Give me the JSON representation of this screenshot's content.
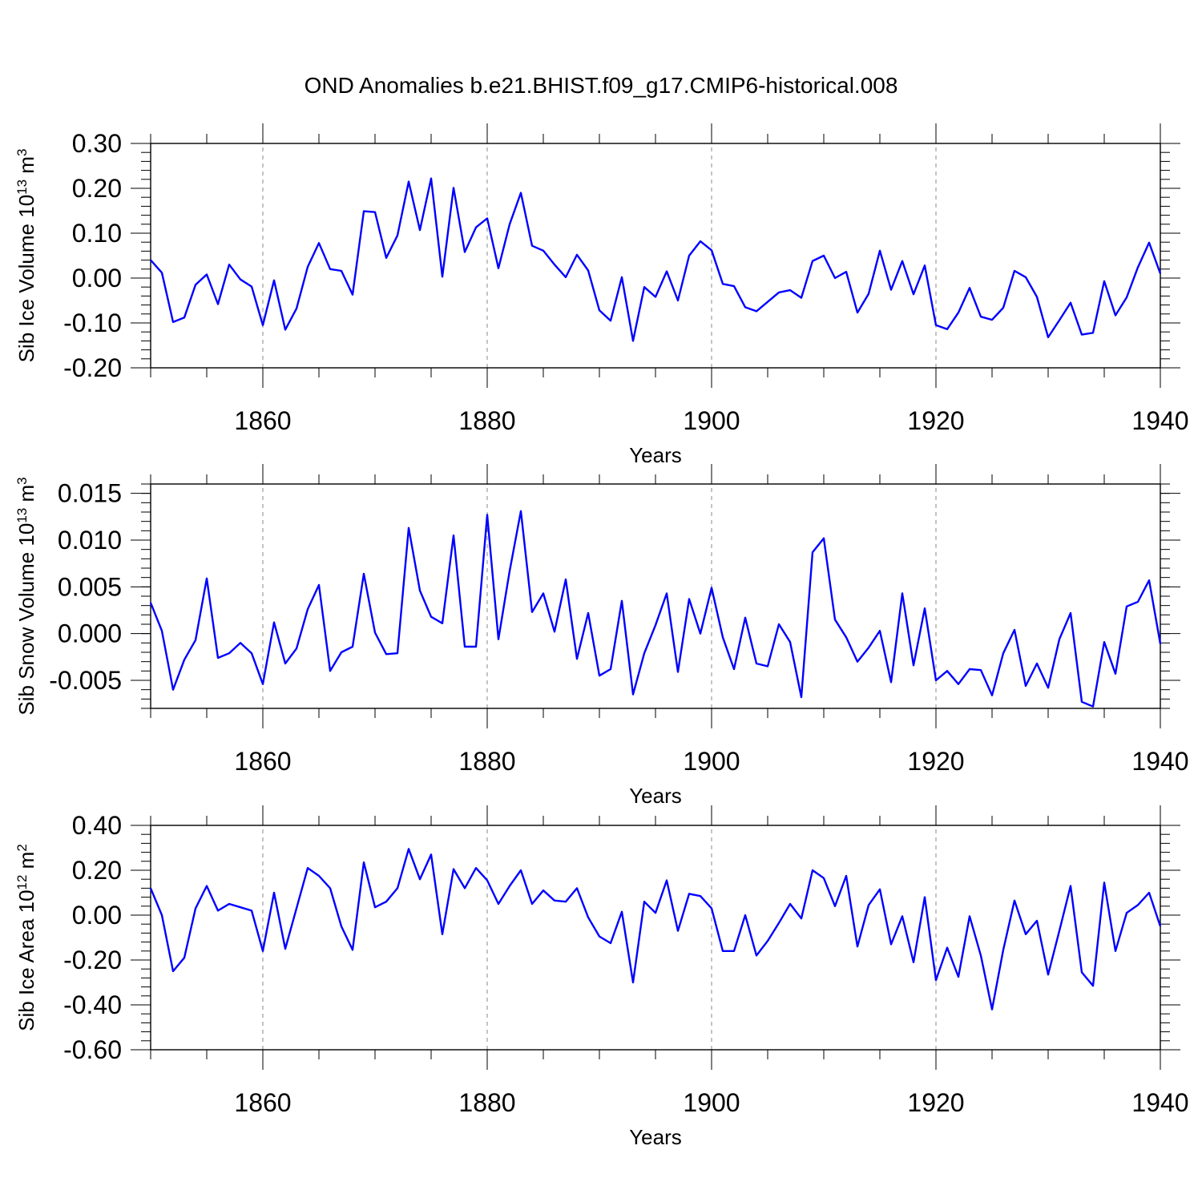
{
  "title": "OND Anomalies b.e21.BHIST.f09_g17.CMIP6-historical.008",
  "line_color": "#0000ff",
  "chart_data": [
    {
      "type": "line",
      "ylabel": "Sib Ice Volume 10",
      "ylabel_exp": "13",
      "ylabel_unit": " m",
      "ylabel_unit_exp": "3",
      "xlabel": "Years",
      "xlim": [
        1850,
        1940
      ],
      "ylim": [
        -0.2,
        0.3
      ],
      "yticks": [
        -0.2,
        -0.1,
        0.0,
        0.1,
        0.2,
        0.3
      ],
      "ytick_labels": [
        "-0.20",
        "-0.10",
        "0.00",
        "0.10",
        "0.20",
        "0.30"
      ],
      "yminor": 0.02,
      "xticks": [
        1860,
        1880,
        1900,
        1920,
        1940
      ],
      "xtick_labels": [
        "1860",
        "1880",
        "1900",
        "1920",
        "1940"
      ],
      "x_start": 1850,
      "values": [
        0.04,
        0.012,
        -0.098,
        -0.088,
        -0.015,
        0.008,
        -0.058,
        0.03,
        -0.003,
        -0.019,
        -0.105,
        -0.005,
        -0.115,
        -0.068,
        0.025,
        0.078,
        0.02,
        0.016,
        -0.037,
        0.149,
        0.147,
        0.045,
        0.095,
        0.215,
        0.107,
        0.222,
        0.003,
        0.201,
        0.058,
        0.113,
        0.133,
        0.022,
        0.12,
        0.19,
        0.072,
        0.061,
        0.03,
        0.002,
        0.052,
        0.017,
        -0.072,
        -0.095,
        0.002,
        -0.14,
        -0.02,
        -0.042,
        0.015,
        -0.05,
        0.05,
        0.082,
        0.062,
        -0.013,
        -0.018,
        -0.065,
        -0.074,
        -0.053,
        -0.032,
        -0.027,
        -0.044,
        0.038,
        0.05,
        0.0,
        0.014,
        -0.077,
        -0.035,
        0.061,
        -0.026,
        0.038,
        -0.036,
        0.028,
        -0.105,
        -0.114,
        -0.077,
        -0.022,
        -0.086,
        -0.093,
        -0.066,
        0.016,
        0.002,
        -0.042,
        -0.132,
        -0.094,
        -0.055,
        -0.126,
        -0.122,
        -0.007,
        -0.083,
        -0.043,
        0.024,
        0.079,
        0.01
      ]
    },
    {
      "type": "line",
      "ylabel": "Sib Snow Volume 10",
      "ylabel_exp": "13",
      "ylabel_unit": " m",
      "ylabel_unit_exp": "3",
      "xlabel": "Years",
      "xlim": [
        1850,
        1940
      ],
      "ylim": [
        -0.008,
        0.016
      ],
      "yticks": [
        -0.005,
        0.0,
        0.005,
        0.01,
        0.015
      ],
      "ytick_labels": [
        "-0.005",
        "0.000",
        "0.005",
        "0.010",
        "0.015"
      ],
      "yminor": 0.001,
      "xticks": [
        1860,
        1880,
        1900,
        1920,
        1940
      ],
      "xtick_labels": [
        "1860",
        "1880",
        "1900",
        "1920",
        "1940"
      ],
      "x_start": 1850,
      "values": [
        0.0033,
        0.0003,
        -0.006,
        -0.0028,
        -0.0007,
        0.0059,
        -0.0026,
        -0.0021,
        -0.001,
        -0.0021,
        -0.0054,
        0.0012,
        -0.0032,
        -0.0016,
        0.0026,
        0.0052,
        -0.004,
        -0.002,
        -0.0014,
        0.0064,
        0.0001,
        -0.0022,
        -0.0021,
        0.0113,
        0.0046,
        0.0018,
        0.0011,
        0.0105,
        -0.0014,
        -0.0014,
        0.0127,
        -0.0006,
        0.0067,
        0.0131,
        0.0023,
        0.0043,
        0.0002,
        0.0058,
        -0.0027,
        0.0022,
        -0.0045,
        -0.0038,
        0.0035,
        -0.0065,
        -0.0021,
        0.0009,
        0.0043,
        -0.0041,
        0.0037,
        0.0,
        0.0049,
        -0.0004,
        -0.0038,
        0.0017,
        -0.0032,
        -0.0035,
        0.001,
        -0.0009,
        -0.0068,
        0.0087,
        0.0102,
        0.0015,
        -0.0004,
        -0.003,
        -0.0015,
        0.0003,
        -0.0052,
        0.0043,
        -0.0034,
        0.0027,
        -0.005,
        -0.004,
        -0.0054,
        -0.0038,
        -0.0039,
        -0.0066,
        -0.0021,
        0.0004,
        -0.0056,
        -0.0032,
        -0.0058,
        -0.0006,
        0.0022,
        -0.0073,
        -0.0078,
        -0.0009,
        -0.0043,
        0.0029,
        0.0034,
        0.0057,
        -0.0011
      ]
    },
    {
      "type": "line",
      "ylabel": "Sib Ice Area 10",
      "ylabel_exp": "12",
      "ylabel_unit": " m",
      "ylabel_unit_exp": "2",
      "xlabel": "Years",
      "xlim": [
        1850,
        1940
      ],
      "ylim": [
        -0.6,
        0.4
      ],
      "yticks": [
        -0.6,
        -0.4,
        -0.2,
        0.0,
        0.2,
        0.4
      ],
      "ytick_labels": [
        "-0.60",
        "-0.40",
        "-0.20",
        "0.00",
        "0.20",
        "0.40"
      ],
      "yminor": 0.04,
      "xticks": [
        1860,
        1880,
        1900,
        1920,
        1940
      ],
      "xtick_labels": [
        "1860",
        "1880",
        "1900",
        "1920",
        "1940"
      ],
      "x_start": 1850,
      "values": [
        0.12,
        0.0,
        -0.25,
        -0.19,
        0.03,
        0.13,
        0.02,
        0.05,
        0.035,
        0.02,
        -0.16,
        0.1,
        -0.15,
        0.03,
        0.21,
        0.175,
        0.12,
        -0.05,
        -0.155,
        0.235,
        0.035,
        0.06,
        0.12,
        0.295,
        0.16,
        0.27,
        -0.085,
        0.205,
        0.12,
        0.21,
        0.155,
        0.05,
        0.13,
        0.2,
        0.05,
        0.11,
        0.065,
        0.06,
        0.12,
        -0.01,
        -0.095,
        -0.125,
        0.015,
        -0.3,
        0.06,
        0.01,
        0.155,
        -0.07,
        0.095,
        0.085,
        0.03,
        -0.16,
        -0.16,
        0.0,
        -0.18,
        -0.115,
        -0.035,
        0.05,
        -0.015,
        0.2,
        0.165,
        0.04,
        0.175,
        -0.14,
        0.045,
        0.115,
        -0.13,
        -0.005,
        -0.21,
        0.08,
        -0.29,
        -0.145,
        -0.275,
        -0.005,
        -0.18,
        -0.42,
        -0.155,
        0.065,
        -0.085,
        -0.025,
        -0.265,
        -0.07,
        0.13,
        -0.255,
        -0.315,
        0.145,
        -0.16,
        0.01,
        0.045,
        0.1,
        -0.05
      ]
    }
  ]
}
